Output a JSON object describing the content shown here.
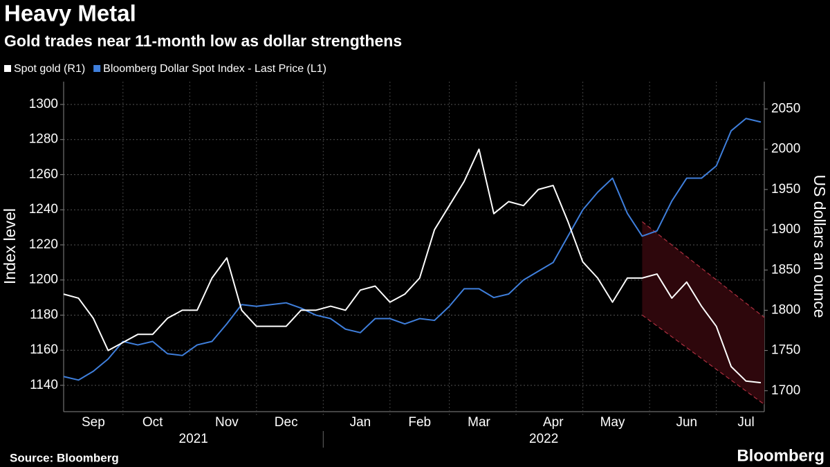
{
  "chart_data": {
    "type": "line",
    "title": "Heavy Metal",
    "subtitle": "Gold trades near 11-month low as dollar strengthens",
    "y_label": "Index level",
    "y2_label": "US dollars an ounce",
    "source": "Source: Bloomberg",
    "logo": "Bloomberg",
    "categories": [
      null,
      null,
      "Sep",
      null,
      null,
      null,
      "Oct",
      null,
      null,
      null,
      null,
      "Nov",
      null,
      null,
      null,
      "Dec",
      null,
      null,
      null,
      null,
      "Jan",
      null,
      null,
      null,
      "Feb",
      null,
      null,
      null,
      "Mar",
      null,
      null,
      null,
      null,
      "Apr",
      null,
      null,
      null,
      "May",
      null,
      null,
      null,
      null,
      "Jun",
      null,
      null,
      null,
      "Jul",
      null
    ],
    "years": [
      "2021",
      "2022"
    ],
    "series": [
      {
        "name": "Spot gold (R1)",
        "color": "#ffffff",
        "axis": "y2",
        "values": [
          1820,
          1815,
          1790,
          1750,
          1760,
          1770,
          1770,
          1790,
          1800,
          1800,
          1840,
          1865,
          1800,
          1780,
          1780,
          1780,
          1800,
          1800,
          1805,
          1800,
          1825,
          1830,
          1810,
          1820,
          1840,
          1900,
          1930,
          1960,
          2000,
          1920,
          1935,
          1930,
          1950,
          1955,
          1910,
          1860,
          1840,
          1810,
          1840,
          1840,
          1845,
          1815,
          1835,
          1805,
          1780,
          1730,
          1712,
          1710
        ]
      },
      {
        "name": "Bloomberg Dollar Spot Index - Last Price (L1)",
        "color": "#3f7fdc",
        "values": [
          1145,
          1143,
          1148,
          1155,
          1165,
          1163,
          1165,
          1158,
          1157,
          1163,
          1165,
          1175,
          1186,
          1185,
          1186,
          1187,
          1184,
          1180,
          1178,
          1172,
          1170,
          1178,
          1178,
          1175,
          1178,
          1177,
          1185,
          1195,
          1195,
          1190,
          1192,
          1200,
          1205,
          1210,
          1225,
          1240,
          1250,
          1258,
          1238,
          1225,
          1228,
          1245,
          1258,
          1258,
          1265,
          1285,
          1292,
          1290
        ]
      }
    ],
    "trend_channel": {
      "upper": [
        1910,
        1791
      ],
      "lower": [
        1794,
        1683
      ],
      "color": "#b03040"
    },
    "ylim": [
      1125,
      1313
    ],
    "yticks": [
      1140,
      1160,
      1180,
      1200,
      1220,
      1240,
      1260,
      1280,
      1300
    ],
    "y2lim": [
      1674,
      2084
    ],
    "y2ticks": [
      1700,
      1750,
      1800,
      1850,
      1900,
      1950,
      2000,
      2050
    ],
    "grid": true
  }
}
